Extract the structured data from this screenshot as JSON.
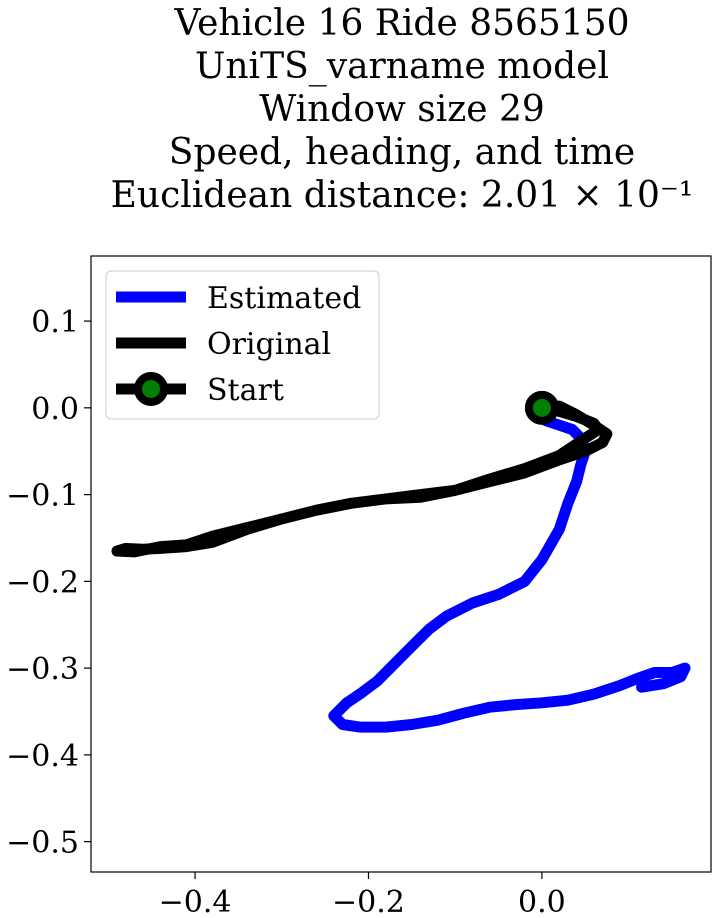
{
  "chart_data": {
    "type": "line",
    "title_lines": [
      "Vehicle 16 Ride 8565150",
      "UniTS_varname model",
      "Window size 29",
      "Speed, heading, and time",
      "Euclidean distance: 2.01 × 10⁻¹"
    ],
    "xlabel": "",
    "ylabel": "",
    "xlim": [
      -0.52,
      0.195
    ],
    "ylim": [
      -0.535,
      0.175
    ],
    "xticks": [
      -0.4,
      -0.2,
      0.0
    ],
    "xtick_labels": [
      "−0.4",
      "−0.2",
      "0.0"
    ],
    "yticks": [
      0.1,
      0.0,
      -0.1,
      -0.2,
      -0.3,
      -0.4,
      -0.5
    ],
    "ytick_labels": [
      "0.1",
      "0.0",
      "−0.1",
      "−0.2",
      "−0.3",
      "−0.4",
      "−0.5"
    ],
    "grid": false,
    "legend_position": "upper-left",
    "legend": [
      "Estimated",
      "Original",
      "Start"
    ],
    "series": [
      {
        "name": "Estimated",
        "color": "#0000ff",
        "x": [
          0.0,
          0.005,
          0.02,
          0.035,
          0.045,
          0.05,
          0.045,
          0.04,
          0.03,
          0.02,
          0.0,
          -0.02,
          -0.05,
          -0.08,
          -0.11,
          -0.13,
          -0.15,
          -0.17,
          -0.19,
          -0.21,
          -0.225,
          -0.235,
          -0.24,
          -0.23,
          -0.21,
          -0.18,
          -0.15,
          -0.12,
          -0.09,
          -0.06,
          -0.03,
          0.0,
          0.03,
          0.06,
          0.09,
          0.11,
          0.13,
          0.15,
          0.165,
          0.16,
          0.14,
          0.115
        ],
        "y": [
          0.0,
          -0.015,
          -0.02,
          -0.025,
          -0.035,
          -0.05,
          -0.065,
          -0.085,
          -0.11,
          -0.14,
          -0.175,
          -0.2,
          -0.215,
          -0.225,
          -0.24,
          -0.255,
          -0.275,
          -0.295,
          -0.315,
          -0.33,
          -0.34,
          -0.35,
          -0.355,
          -0.365,
          -0.368,
          -0.368,
          -0.365,
          -0.36,
          -0.352,
          -0.345,
          -0.342,
          -0.34,
          -0.337,
          -0.33,
          -0.32,
          -0.312,
          -0.305,
          -0.305,
          -0.3,
          -0.31,
          -0.318,
          -0.322
        ]
      },
      {
        "name": "Original",
        "color": "#000000",
        "x": [
          0.0,
          0.02,
          0.04,
          0.06,
          0.075,
          0.07,
          0.05,
          0.02,
          -0.02,
          -0.06,
          -0.1,
          -0.14,
          -0.18,
          -0.22,
          -0.26,
          -0.3,
          -0.34,
          -0.38,
          -0.41,
          -0.44,
          -0.46,
          -0.48,
          -0.49,
          -0.47,
          -0.44,
          -0.41,
          -0.38,
          -0.34,
          -0.3,
          -0.26,
          -0.22,
          -0.18,
          -0.14,
          -0.1,
          -0.06,
          -0.02,
          0.02,
          0.05,
          0.065,
          0.06,
          0.04,
          0.02,
          0.01,
          0.0
        ],
        "y": [
          0.0,
          0.002,
          -0.008,
          -0.02,
          -0.03,
          -0.04,
          -0.05,
          -0.06,
          -0.075,
          -0.085,
          -0.095,
          -0.1,
          -0.105,
          -0.11,
          -0.118,
          -0.128,
          -0.14,
          -0.155,
          -0.16,
          -0.162,
          -0.163,
          -0.162,
          -0.165,
          -0.166,
          -0.16,
          -0.158,
          -0.148,
          -0.138,
          -0.128,
          -0.118,
          -0.11,
          -0.105,
          -0.103,
          -0.095,
          -0.082,
          -0.07,
          -0.055,
          -0.035,
          -0.025,
          -0.018,
          -0.01,
          -0.004,
          -0.001,
          0.0
        ]
      }
    ],
    "start_point": {
      "name": "Start",
      "x": 0.0,
      "y": 0.0,
      "marker_color": "#008000",
      "edge_color": "#000000"
    }
  }
}
